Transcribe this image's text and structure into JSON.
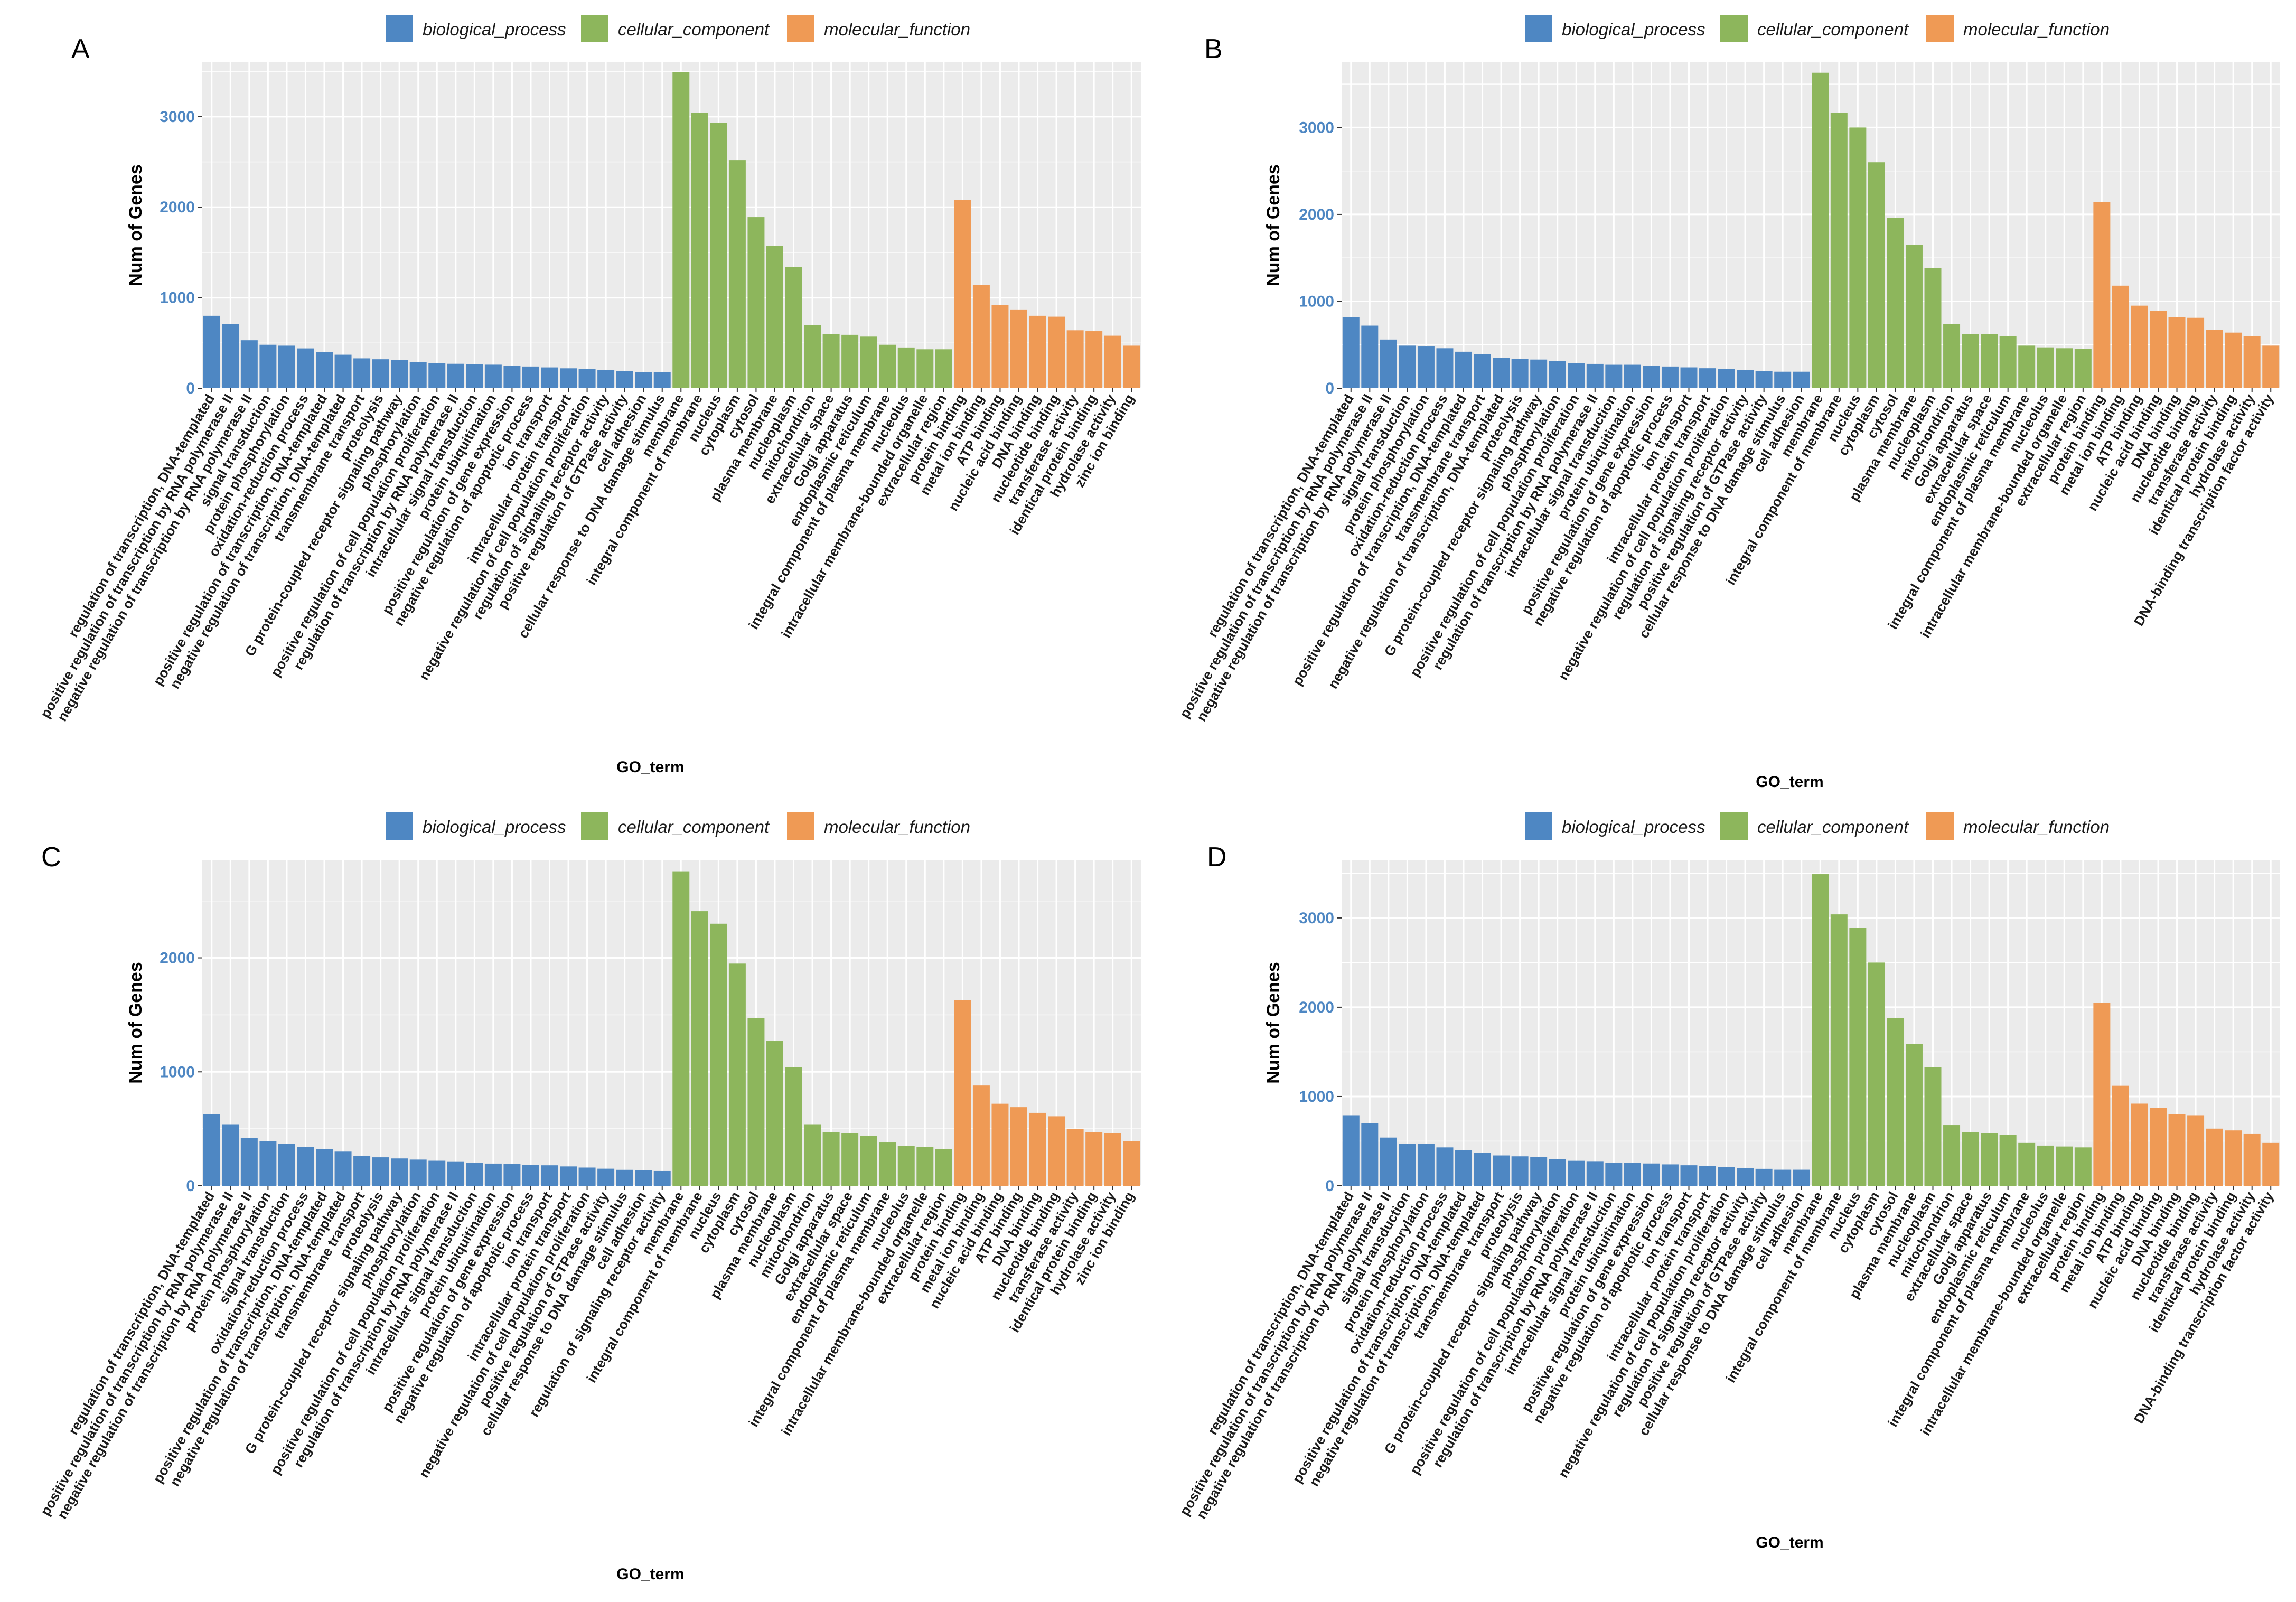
{
  "colors": {
    "biological_process": "#4e87c3",
    "cellular_component": "#8db65c",
    "molecular_function": "#ef9a55",
    "panel_bg": "#ebebeb",
    "grid": "#ffffff",
    "y_tick_text": "#4e87c3"
  },
  "chart_data": [
    {
      "type": "bar",
      "panel_label": "A",
      "legend": [
        "biological_process",
        "cellular_component",
        "molecular_function"
      ],
      "legend_placement": "top",
      "xlabel": "GO_term",
      "ylabel": "Num of Genes",
      "ylim": [
        0,
        3600
      ],
      "yticks": [
        0,
        1000,
        2000,
        3000
      ],
      "grid": true,
      "categories": [
        "regulation of transcription, DNA-templated",
        "positive regulation of transcription by RNA polymerase II",
        "negative regulation of transcription by RNA polymerase II",
        "signal transduction",
        "protein phosphorylation",
        "oxidation-reduction process",
        "positive regulation of transcription, DNA-templated",
        "negative regulation of transcription, DNA-templated",
        "transmembrane transport",
        "proteolysis",
        "G protein-coupled receptor signaling pathway",
        "phosphorylation",
        "positive regulation of cell population proliferation",
        "regulation of transcription by RNA polymerase II",
        "intracellular signal transduction",
        "protein ubiquitination",
        "positive regulation of gene expression",
        "negative regulation of apoptotic process",
        "ion transport",
        "intracellular protein transport",
        "negative regulation of cell population proliferation",
        "regulation of signaling receptor activity",
        "positive regulation of GTPase activity",
        "cell adhesion",
        "cellular response to DNA damage stimulus",
        "membrane",
        "integral component of membrane",
        "nucleus",
        "cytoplasm",
        "cytosol",
        "plasma membrane",
        "nucleoplasm",
        "mitochondrion",
        "extracellular space",
        "Golgi apparatus",
        "endoplasmic reticulum",
        "integral component of plasma membrane",
        "nucleolus",
        "intracellular membrane-bounded organelle",
        "extracellular region",
        "protein binding",
        "metal ion binding",
        "ATP binding",
        "nucleic acid binding",
        "DNA binding",
        "nucleotide binding",
        "transferase activity",
        "identical protein binding",
        "hydrolase activity",
        "zinc ion binding"
      ],
      "values": [
        800,
        710,
        530,
        480,
        470,
        440,
        400,
        370,
        330,
        320,
        310,
        290,
        280,
        270,
        265,
        260,
        250,
        240,
        230,
        220,
        210,
        200,
        190,
        180,
        180,
        3490,
        3040,
        2930,
        2520,
        1890,
        1570,
        1340,
        700,
        600,
        590,
        570,
        480,
        450,
        430,
        430,
        2080,
        1140,
        920,
        870,
        800,
        790,
        640,
        630,
        580,
        470
      ],
      "groups": [
        "biological_process",
        "biological_process",
        "biological_process",
        "biological_process",
        "biological_process",
        "biological_process",
        "biological_process",
        "biological_process",
        "biological_process",
        "biological_process",
        "biological_process",
        "biological_process",
        "biological_process",
        "biological_process",
        "biological_process",
        "biological_process",
        "biological_process",
        "biological_process",
        "biological_process",
        "biological_process",
        "biological_process",
        "biological_process",
        "biological_process",
        "biological_process",
        "biological_process",
        "cellular_component",
        "cellular_component",
        "cellular_component",
        "cellular_component",
        "cellular_component",
        "cellular_component",
        "cellular_component",
        "cellular_component",
        "cellular_component",
        "cellular_component",
        "cellular_component",
        "cellular_component",
        "cellular_component",
        "cellular_component",
        "cellular_component",
        "molecular_function",
        "molecular_function",
        "molecular_function",
        "molecular_function",
        "molecular_function",
        "molecular_function",
        "molecular_function",
        "molecular_function",
        "molecular_function",
        "molecular_function"
      ]
    },
    {
      "type": "bar",
      "panel_label": "B",
      "legend": [
        "biological_process",
        "cellular_component",
        "molecular_function"
      ],
      "legend_placement": "top",
      "xlabel": "GO_term",
      "ylabel": "Num of Genes",
      "ylim": [
        0,
        3750
      ],
      "yticks": [
        0,
        1000,
        2000,
        3000
      ],
      "grid": true,
      "categories": [
        "regulation of transcription, DNA-templated",
        "positive regulation of transcription by RNA polymerase II",
        "negative regulation of transcription by RNA polymerase II",
        "signal transduction",
        "protein phosphorylation",
        "oxidation-reduction process",
        "positive regulation of transcription, DNA-templated",
        "transmembrane transport",
        "negative regulation of transcription, DNA-templated",
        "proteolysis",
        "G protein-coupled receptor signaling pathway",
        "phosphorylation",
        "positive regulation of cell population proliferation",
        "regulation of transcription by RNA polymerase II",
        "intracellular signal transduction",
        "protein ubiquitination",
        "positive regulation of gene expression",
        "negative regulation of apoptotic process",
        "ion transport",
        "intracellular protein transport",
        "negative regulation of cell population proliferation",
        "regulation of signaling receptor activity",
        "positive regulation of GTPase activity",
        "cellular response to DNA damage stimulus",
        "cell adhesion",
        "membrane",
        "integral component of membrane",
        "nucleus",
        "cytoplasm",
        "cytosol",
        "plasma membrane",
        "nucleoplasm",
        "mitochondrion",
        "Golgi apparatus",
        "extracellular space",
        "endoplasmic reticulum",
        "integral component of plasma membrane",
        "nucleolus",
        "intracellular membrane-bounded organelle",
        "extracellular region",
        "protein binding",
        "metal ion binding",
        "ATP binding",
        "nucleic acid binding",
        "DNA binding",
        "nucleotide binding",
        "transferase activity",
        "identical protein binding",
        "hydrolase activity",
        "DNA-binding transcription factor activity"
      ],
      "values": [
        820,
        720,
        560,
        490,
        480,
        460,
        420,
        390,
        350,
        340,
        330,
        310,
        290,
        280,
        270,
        270,
        260,
        250,
        240,
        230,
        220,
        210,
        200,
        190,
        190,
        3630,
        3170,
        3000,
        2600,
        1960,
        1650,
        1380,
        740,
        620,
        620,
        600,
        490,
        470,
        460,
        450,
        2140,
        1180,
        950,
        890,
        820,
        810,
        670,
        640,
        600,
        490
      ],
      "groups": [
        "biological_process",
        "biological_process",
        "biological_process",
        "biological_process",
        "biological_process",
        "biological_process",
        "biological_process",
        "biological_process",
        "biological_process",
        "biological_process",
        "biological_process",
        "biological_process",
        "biological_process",
        "biological_process",
        "biological_process",
        "biological_process",
        "biological_process",
        "biological_process",
        "biological_process",
        "biological_process",
        "biological_process",
        "biological_process",
        "biological_process",
        "biological_process",
        "biological_process",
        "cellular_component",
        "cellular_component",
        "cellular_component",
        "cellular_component",
        "cellular_component",
        "cellular_component",
        "cellular_component",
        "cellular_component",
        "cellular_component",
        "cellular_component",
        "cellular_component",
        "cellular_component",
        "cellular_component",
        "cellular_component",
        "cellular_component",
        "molecular_function",
        "molecular_function",
        "molecular_function",
        "molecular_function",
        "molecular_function",
        "molecular_function",
        "molecular_function",
        "molecular_function",
        "molecular_function",
        "molecular_function"
      ]
    },
    {
      "type": "bar",
      "panel_label": "C",
      "legend": [
        "biological_process",
        "cellular_component",
        "molecular_function"
      ],
      "legend_placement": "top",
      "xlabel": "GO_term",
      "ylabel": "Num of Genes",
      "ylim": [
        0,
        2860
      ],
      "yticks": [
        0,
        1000,
        2000
      ],
      "grid": true,
      "categories": [
        "regulation of transcription, DNA-templated",
        "positive regulation of transcription by RNA polymerase II",
        "negative regulation of transcription by RNA polymerase II",
        "protein phosphorylation",
        "signal transduction",
        "oxidation-reduction process",
        "positive regulation of transcription, DNA-templated",
        "negative regulation of transcription, DNA-templated",
        "transmembrane transport",
        "proteolysis",
        "G protein-coupled receptor signaling pathway",
        "phosphorylation",
        "positive regulation of cell population proliferation",
        "regulation of transcription by RNA polymerase II",
        "intracellular signal transduction",
        "protein ubiquitination",
        "positive regulation of gene expression",
        "negative regulation of apoptotic process",
        "ion transport",
        "intracellular protein transport",
        "negative regulation of cell population proliferation",
        "positive regulation of GTPase activity",
        "cellular response to DNA damage stimulus",
        "cell adhesion",
        "regulation of signaling receptor activity",
        "membrane",
        "integral component of membrane",
        "nucleus",
        "cytoplasm",
        "cytosol",
        "plasma membrane",
        "nucleoplasm",
        "mitochondrion",
        "Golgi apparatus",
        "extracellular space",
        "endoplasmic reticulum",
        "integral component of plasma membrane",
        "nucleolus",
        "intracellular membrane-bounded organelle",
        "extracellular region",
        "protein binding",
        "metal ion binding",
        "nucleic acid binding",
        "ATP binding",
        "DNA binding",
        "nucleotide binding",
        "transferase activity",
        "identical protein binding",
        "hydrolase activity",
        "zinc ion binding"
      ],
      "values": [
        630,
        540,
        420,
        390,
        370,
        340,
        320,
        300,
        260,
        250,
        240,
        230,
        220,
        210,
        200,
        195,
        190,
        185,
        180,
        170,
        160,
        150,
        140,
        135,
        130,
        2760,
        2410,
        2300,
        1950,
        1470,
        1270,
        1040,
        540,
        470,
        460,
        440,
        380,
        350,
        340,
        320,
        1630,
        880,
        720,
        690,
        640,
        610,
        500,
        470,
        460,
        390
      ],
      "groups": [
        "biological_process",
        "biological_process",
        "biological_process",
        "biological_process",
        "biological_process",
        "biological_process",
        "biological_process",
        "biological_process",
        "biological_process",
        "biological_process",
        "biological_process",
        "biological_process",
        "biological_process",
        "biological_process",
        "biological_process",
        "biological_process",
        "biological_process",
        "biological_process",
        "biological_process",
        "biological_process",
        "biological_process",
        "biological_process",
        "biological_process",
        "biological_process",
        "biological_process",
        "cellular_component",
        "cellular_component",
        "cellular_component",
        "cellular_component",
        "cellular_component",
        "cellular_component",
        "cellular_component",
        "cellular_component",
        "cellular_component",
        "cellular_component",
        "cellular_component",
        "cellular_component",
        "cellular_component",
        "cellular_component",
        "cellular_component",
        "molecular_function",
        "molecular_function",
        "molecular_function",
        "molecular_function",
        "molecular_function",
        "molecular_function",
        "molecular_function",
        "molecular_function",
        "molecular_function",
        "molecular_function"
      ]
    },
    {
      "type": "bar",
      "panel_label": "D",
      "legend": [
        "biological_process",
        "cellular_component",
        "molecular_function"
      ],
      "legend_placement": "top",
      "xlabel": "GO_term",
      "ylabel": "Num of Genes",
      "ylim": [
        0,
        3650
      ],
      "yticks": [
        0,
        1000,
        2000,
        3000
      ],
      "grid": true,
      "categories": [
        "regulation of transcription, DNA-templated",
        "positive regulation of transcription by RNA polymerase II",
        "negative regulation of transcription by RNA polymerase II",
        "signal transduction",
        "protein phosphorylation",
        "oxidation-reduction process",
        "positive regulation of transcription, DNA-templated",
        "negative regulation of transcription, DNA-templated",
        "transmembrane transport",
        "proteolysis",
        "G protein-coupled receptor signaling pathway",
        "phosphorylation",
        "positive regulation of cell population proliferation",
        "regulation of transcription by RNA polymerase II",
        "intracellular signal transduction",
        "protein ubiquitination",
        "positive regulation of gene expression",
        "negative regulation of apoptotic process",
        "ion transport",
        "intracellular protein transport",
        "negative regulation of cell population proliferation",
        "regulation of signaling receptor activity",
        "positive regulation of GTPase activity",
        "cellular response to DNA damage stimulus",
        "cell adhesion",
        "membrane",
        "integral component of membrane",
        "nucleus",
        "cytoplasm",
        "cytosol",
        "plasma membrane",
        "nucleoplasm",
        "mitochondrion",
        "extracellular space",
        "Golgi apparatus",
        "endoplasmic reticulum",
        "integral component of plasma membrane",
        "nucleolus",
        "intracellular membrane-bounded organelle",
        "extracellular region",
        "protein binding",
        "metal ion binding",
        "ATP binding",
        "nucleic acid binding",
        "DNA binding",
        "nucleotide binding",
        "transferase activity",
        "identical protein binding",
        "hydrolase activity",
        "DNA-binding transcription factor activity"
      ],
      "values": [
        790,
        700,
        540,
        470,
        470,
        430,
        400,
        370,
        340,
        330,
        320,
        300,
        280,
        270,
        260,
        260,
        250,
        240,
        230,
        220,
        210,
        200,
        190,
        180,
        180,
        3490,
        3040,
        2890,
        2500,
        1880,
        1590,
        1330,
        680,
        600,
        590,
        570,
        480,
        450,
        440,
        430,
        2050,
        1120,
        920,
        870,
        800,
        790,
        640,
        620,
        580,
        480
      ],
      "groups": [
        "biological_process",
        "biological_process",
        "biological_process",
        "biological_process",
        "biological_process",
        "biological_process",
        "biological_process",
        "biological_process",
        "biological_process",
        "biological_process",
        "biological_process",
        "biological_process",
        "biological_process",
        "biological_process",
        "biological_process",
        "biological_process",
        "biological_process",
        "biological_process",
        "biological_process",
        "biological_process",
        "biological_process",
        "biological_process",
        "biological_process",
        "biological_process",
        "biological_process",
        "cellular_component",
        "cellular_component",
        "cellular_component",
        "cellular_component",
        "cellular_component",
        "cellular_component",
        "cellular_component",
        "cellular_component",
        "cellular_component",
        "cellular_component",
        "cellular_component",
        "cellular_component",
        "cellular_component",
        "cellular_component",
        "cellular_component",
        "molecular_function",
        "molecular_function",
        "molecular_function",
        "molecular_function",
        "molecular_function",
        "molecular_function",
        "molecular_function",
        "molecular_function",
        "molecular_function",
        "molecular_function"
      ]
    }
  ]
}
